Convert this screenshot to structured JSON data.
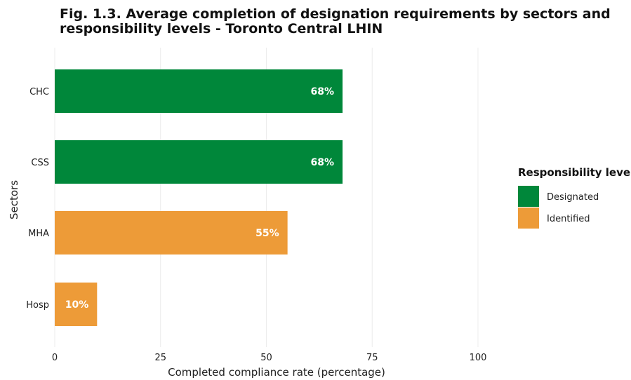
{
  "chart_data": {
    "type": "bar",
    "orientation": "horizontal",
    "title": "Fig. 1.3. Average completion of designation requirements by sectors and responsibility levels - Toronto Central LHIN",
    "xlabel": "Completed compliance rate (percentage)",
    "ylabel": "Sectors",
    "xlim": [
      0,
      100
    ],
    "xticks": [
      "0",
      "25",
      "50",
      "75",
      "100"
    ],
    "grid": true,
    "categories": [
      "CHC",
      "CSS",
      "MHA",
      "Hosp"
    ],
    "values": [
      68,
      68,
      55,
      10
    ],
    "bar_labels": [
      "68%",
      "68%",
      "55%",
      "10%"
    ],
    "bar_groups": [
      "Designated",
      "Designated",
      "Identified",
      "Identified"
    ],
    "legend": {
      "title": "Responsibility level",
      "placement": "right",
      "entries": [
        {
          "name": "Designated",
          "color": "#00873a"
        },
        {
          "name": "Identified",
          "color": "#ed9b38"
        }
      ]
    }
  }
}
